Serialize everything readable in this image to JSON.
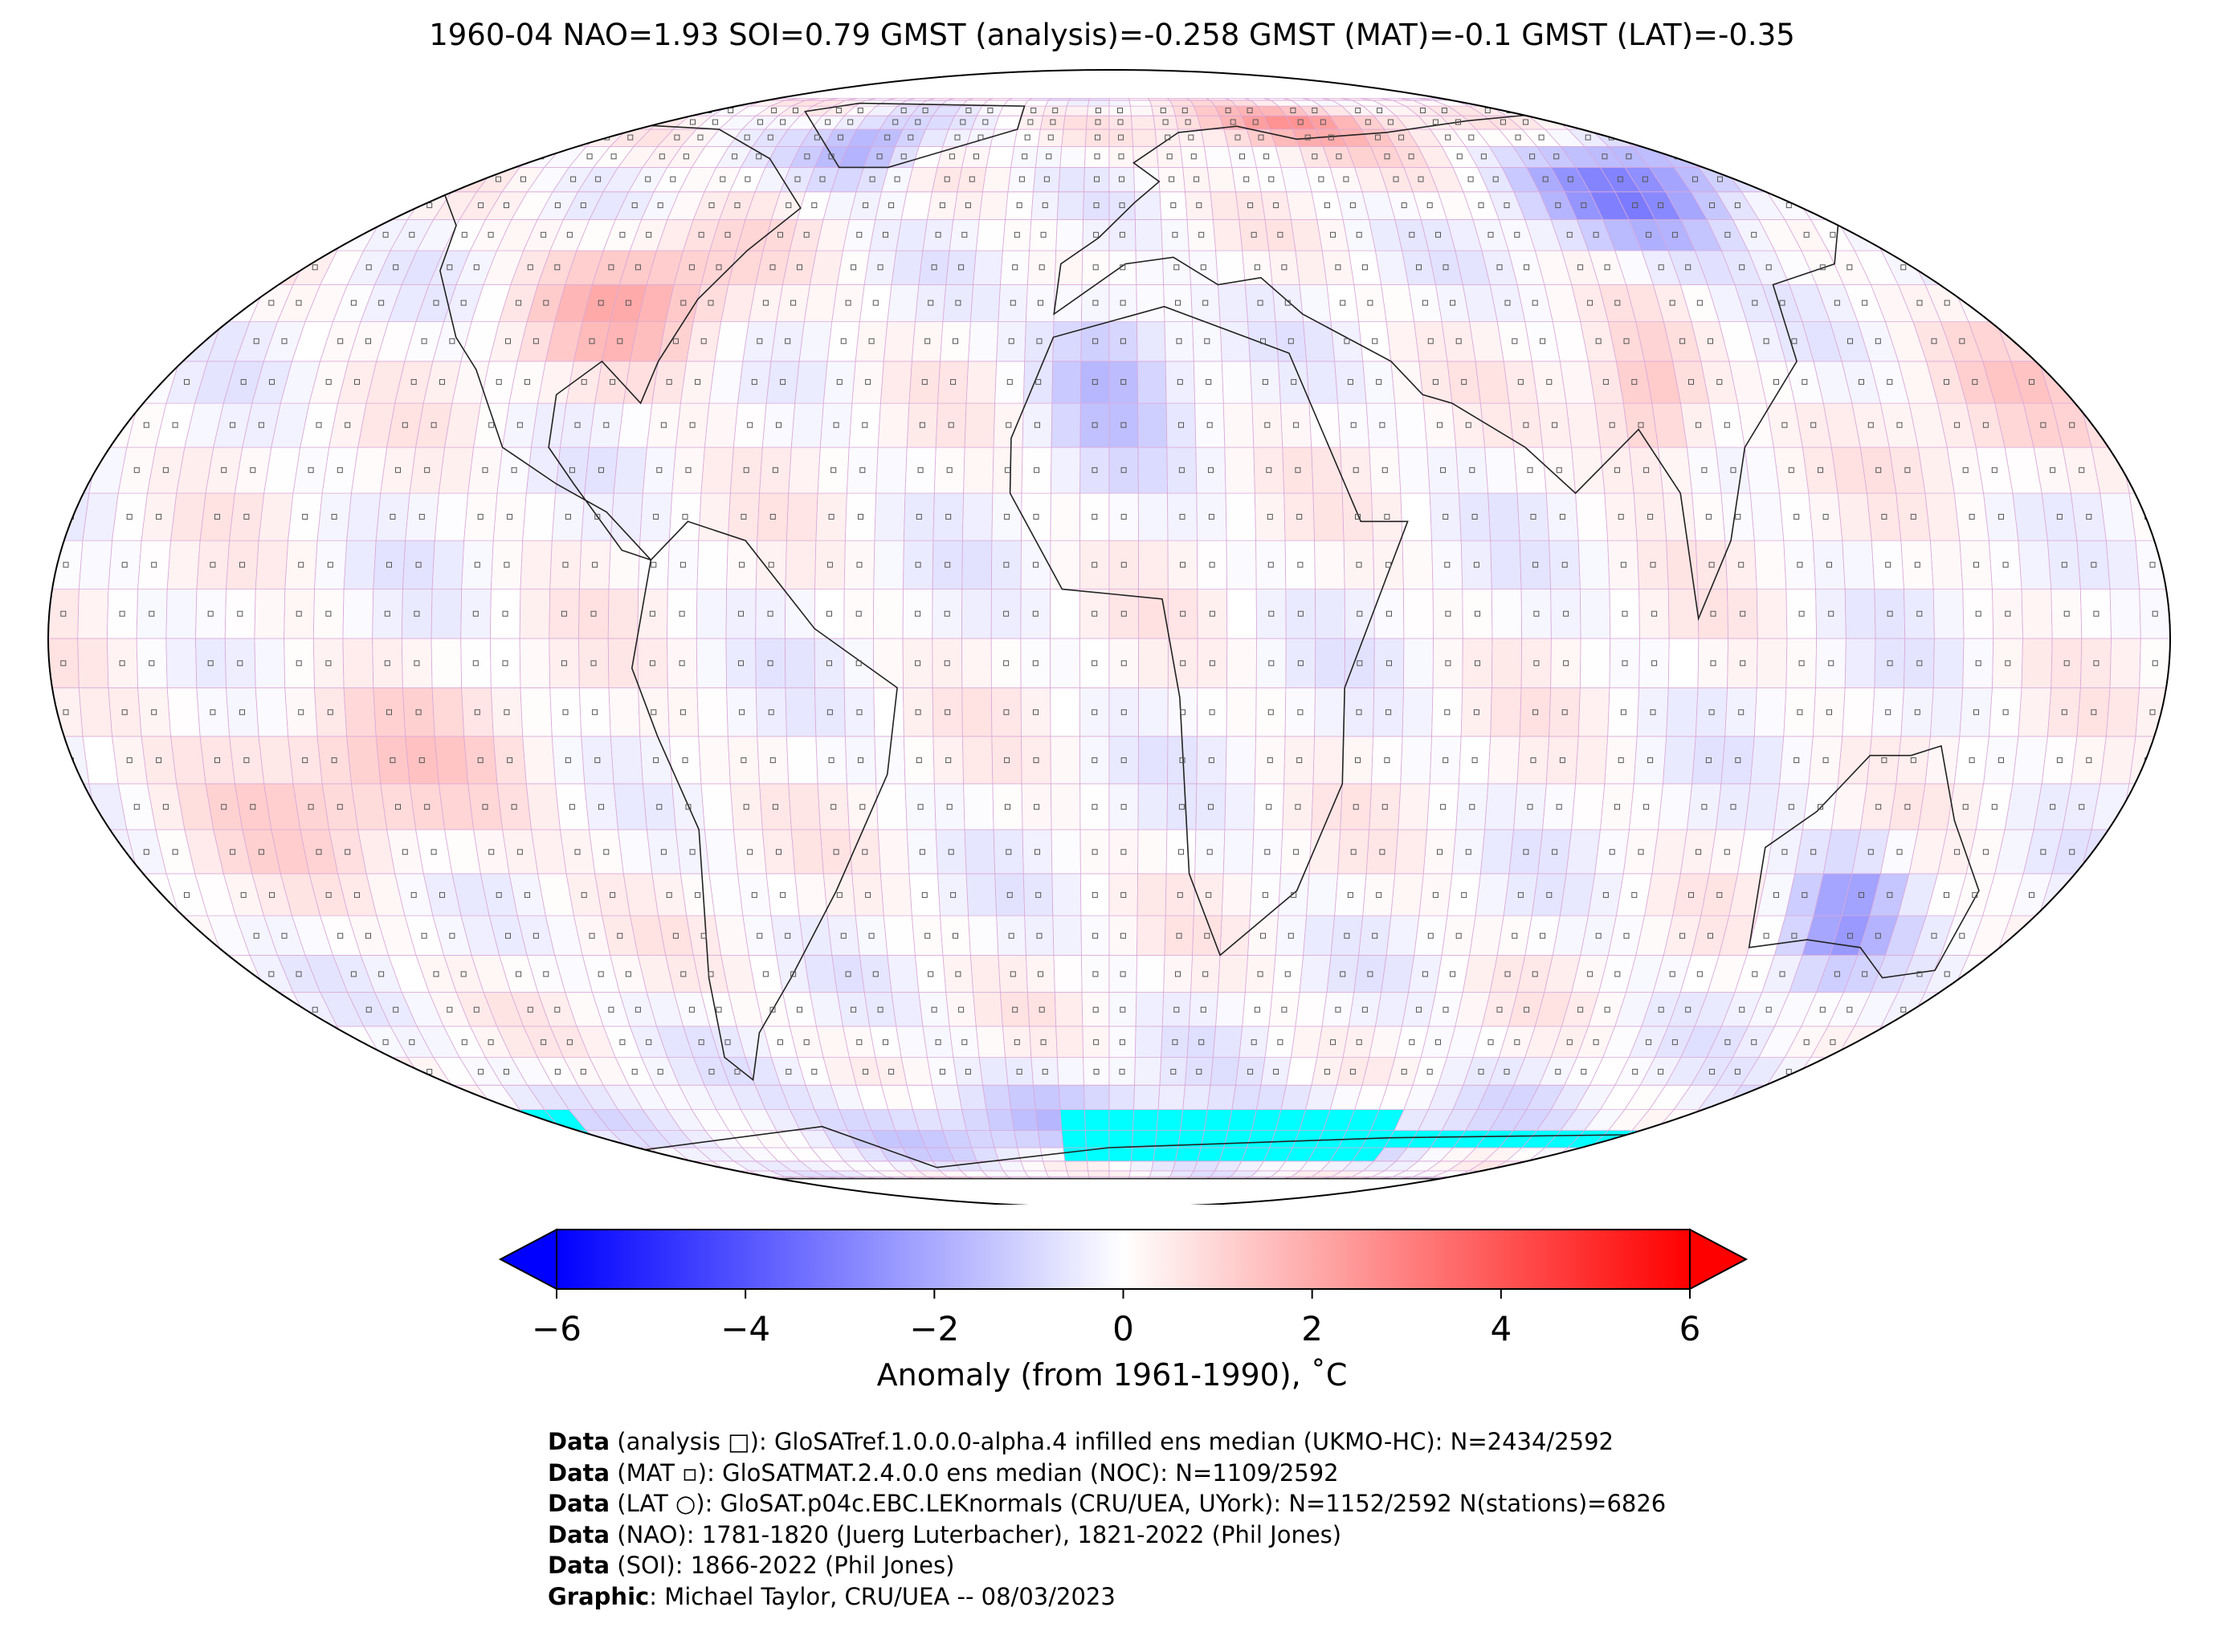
{
  "title": "1960-04 NAO=1.93 SOI=0.79 GMST (analysis)=-0.258 GMST (MAT)=-0.1 GMST (LAT)=-0.35",
  "colorbar": {
    "label": "Anomaly (from 1961-1990), ˚C",
    "ticks": [
      "−6",
      "−4",
      "−2",
      "0",
      "2",
      "4",
      "6"
    ],
    "tick_values": [
      -6,
      -4,
      -2,
      0,
      2,
      4,
      6
    ],
    "range": [
      -6,
      6
    ],
    "extend": "both",
    "colormap": "bwr",
    "colors": {
      "low": "#0000ff",
      "mid": "#ffffff",
      "high": "#ff0000",
      "missing": "#00ffff"
    }
  },
  "map": {
    "projection": "Robinson",
    "grid_resolution_deg": 5,
    "markers": {
      "analysis": "square",
      "MAT": "small-square",
      "LAT": "circle"
    }
  },
  "credits": [
    {
      "key": "Data",
      "text": " (analysis □): GloSATref.1.0.0.0-alpha.4 infilled ens median (UKMO-HC): N=2434/2592"
    },
    {
      "key": "Data",
      "text": " (MAT ▫): GloSATMAT.2.4.0.0 ens median (NOC): N=1109/2592"
    },
    {
      "key": "Data",
      "text": " (LAT ○): GloSAT.p04c.EBC.LEKnormals (CRU/UEA, UYork): N=1152/2592 N(stations)=6826"
    },
    {
      "key": "Data",
      "text": " (NAO): 1781-1820 (Juerg Luterbacher), 1821-2022 (Phil Jones)"
    },
    {
      "key": "Data",
      "text": " (SOI): 1866-2022 (Phil Jones)"
    },
    {
      "key": "Graphic",
      "text": ": Michael Taylor, CRU/UEA -- 08/03/2023"
    }
  ]
}
